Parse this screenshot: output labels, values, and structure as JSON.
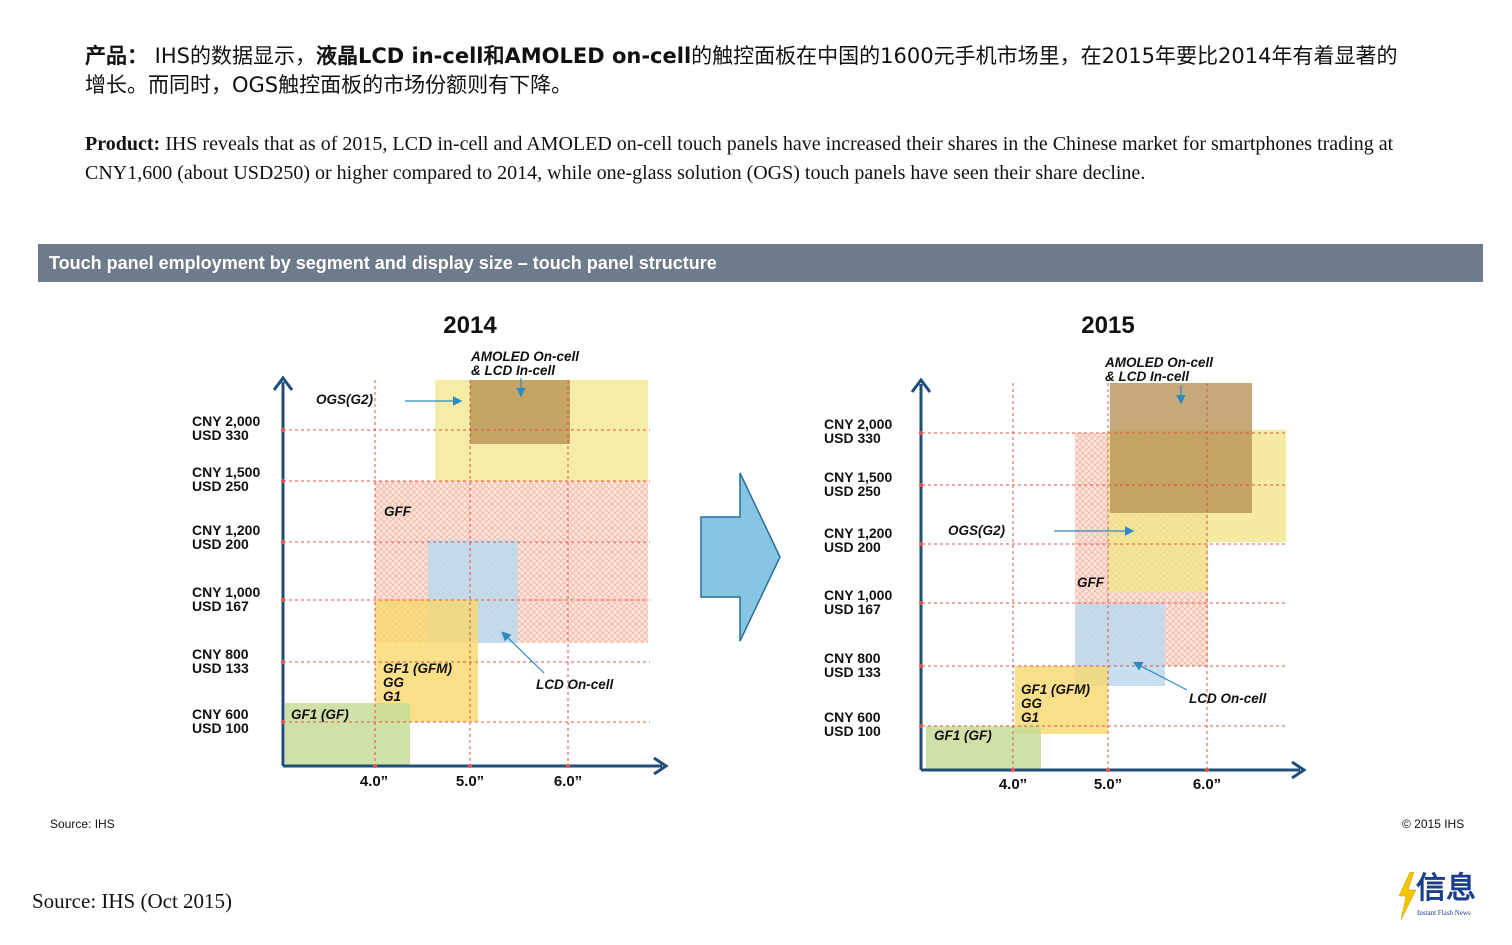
{
  "intro_zh": {
    "label": "产品：",
    "part1": " IHS的数据显示，",
    "bold": "液晶LCD in-cell和AMOLED on-cell",
    "part2": "的触控面板在中国的1600元手机市场里，在2015年要比2014年有着显著的增长。而同时，OGS触控面板的市场份额则有下降。"
  },
  "intro_en": {
    "label": "Product:",
    "text": " IHS reveals that as of 2015, LCD in-cell and AMOLED on-cell touch panels have increased their shares in the Chinese market for smartphones trading at CNY1,600 (about USD250) or higher compared to 2014, while one-glass solution (OGS) touch panels have seen their share decline."
  },
  "banner_title": "Touch panel employment by segment and display size – touch panel structure",
  "price_levels": [
    {
      "cny": "CNY 2,000",
      "usd": "USD 330"
    },
    {
      "cny": "CNY 1,500",
      "usd": "USD 250"
    },
    {
      "cny": "CNY 1,200",
      "usd": "USD 200"
    },
    {
      "cny": "CNY 1,000",
      "usd": "USD 167"
    },
    {
      "cny": "CNY 800",
      "usd": "USD 133"
    },
    {
      "cny": "CNY 600",
      "usd": "USD 100"
    }
  ],
  "x_ticks": [
    "4.0”",
    "5.0”",
    "6.0”"
  ],
  "panels": [
    {
      "year": "2014",
      "labels": {
        "amoled_1": "AMOLED On-cell",
        "amoled_2": "& LCD In-cell",
        "ogs": "OGS(G2)",
        "gff": "GFF",
        "gf1_1": "GF1 (GFM)",
        "gf1_2": "GG",
        "gf1_3": "G1",
        "lcd_oncell": "LCD  On-cell",
        "gf1gf": "GF1 (GF)"
      }
    },
    {
      "year": "2015",
      "labels": {
        "amoled_1": "AMOLED On-cell",
        "amoled_2": "& LCD In-cell",
        "ogs": "OGS(G2)",
        "gff": "GFF",
        "gf1_1": "GF1 (GFM)",
        "gf1_2": "GG",
        "gf1_3": "G1",
        "lcd_oncell": "LCD  On-cell",
        "gf1gf": "GF1 (GF)"
      }
    }
  ],
  "source_small": "Source: IHS",
  "copyright": "© 2015 IHS",
  "source_bottom": "Source: IHS (Oct 2015)",
  "logo": {
    "text": "信息",
    "sub": "Instant Flash News"
  },
  "colors": {
    "axis": "#1f4e79",
    "grid": "#e0524a",
    "ogs": "#f2e68a",
    "amoled": "#b89456",
    "gff": "#f3b7a3",
    "lcd_oncell": "#bcd9ee",
    "gf1_gfm": "#f7d86b",
    "gf1_gf": "#c7dc98",
    "arrow": "#86c6e4",
    "banner": "#6e7b8a"
  }
}
